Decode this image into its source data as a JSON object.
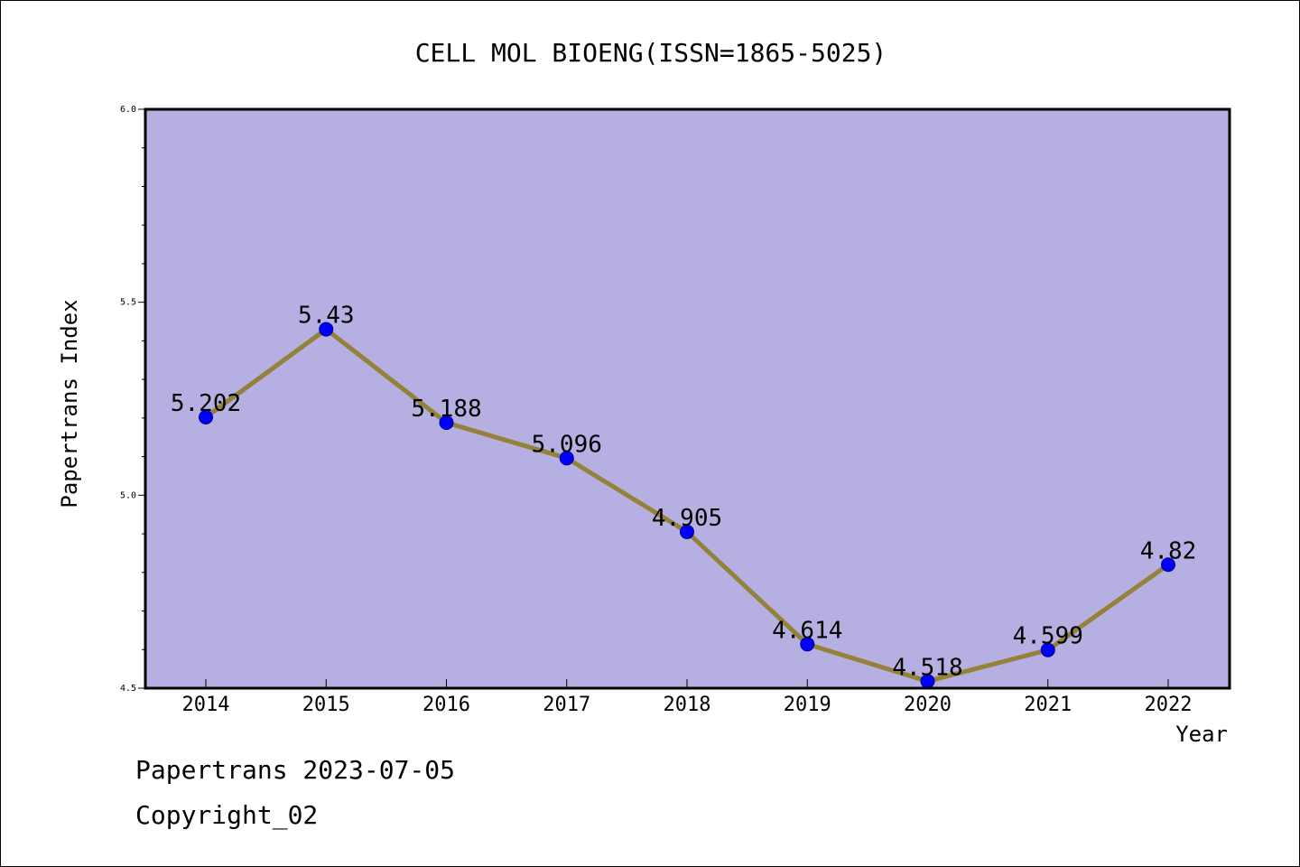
{
  "chart_data": {
    "type": "line",
    "title": "CELL MOL BIOENG(ISSN=1865-5025)",
    "xlabel": "Year",
    "ylabel": "Papertrans Index",
    "categories": [
      "2014",
      "2015",
      "2016",
      "2017",
      "2018",
      "2019",
      "2020",
      "2021",
      "2022"
    ],
    "series": [
      {
        "values": [
          5.202,
          5.43,
          5.188,
          5.096,
          4.905,
          4.614,
          4.518,
          4.599,
          4.82
        ],
        "labels": [
          "5.202",
          "5.43",
          "5.188",
          "5.096",
          "4.905",
          "4.614",
          "4.518",
          "4.599",
          "4.82"
        ]
      }
    ],
    "ylim": [
      4.5,
      6.0
    ],
    "yticks": [
      "4.5",
      "5.0",
      "5.5",
      "6.0"
    ],
    "grid": false,
    "colors": {
      "plot_background": "#b5afe2",
      "line": "#938238",
      "marker": "#0000ff"
    }
  },
  "footer": {
    "line1": "Papertrans 2023-07-05",
    "line2": "Copyright_02"
  }
}
